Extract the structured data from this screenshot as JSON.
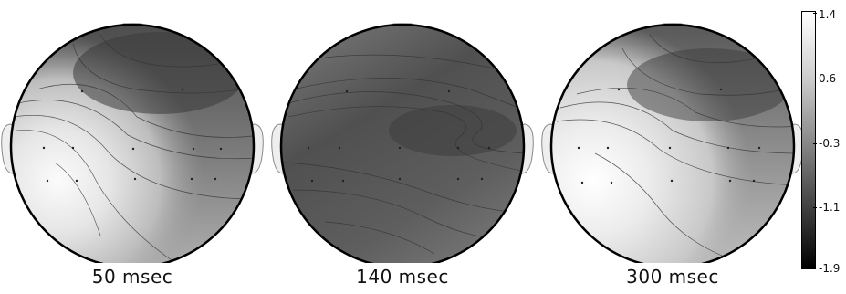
{
  "maps": [
    {
      "label": "50 msec"
    },
    {
      "label": "140 msec"
    },
    {
      "label": "300 msec"
    }
  ],
  "colorbar": {
    "ticks": [
      "1.4",
      "0.6",
      "-0.3",
      "-1.1",
      "-1.9"
    ],
    "colors": {
      "max": "#ffffff",
      "min": "#000000"
    }
  }
}
